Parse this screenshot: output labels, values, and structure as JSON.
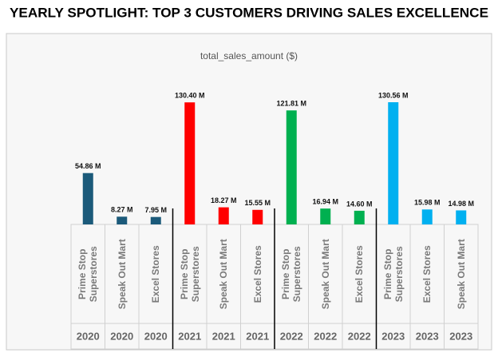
{
  "chart_data": {
    "type": "bar",
    "title": "YEARLY SPOTLIGHT: TOP 3 CUSTOMERS DRIVING SALES EXCELLENCE",
    "subtitle": "total_sales_amount ($)",
    "categories": [
      "Prime Stop Superstores",
      "Speak Out Mart",
      "Excel Stores",
      "Prime Stop Superstores",
      "Speak Out Mart",
      "Excel Stores",
      "Prime Stop Superstores",
      "Speak Out Mart",
      "Excel Stores",
      "Prime Stop Superstores",
      "Excel Stores",
      "Speak Out Mart"
    ],
    "groups": [
      "2020",
      "2020",
      "2020",
      "2021",
      "2021",
      "2021",
      "2022",
      "2022",
      "2022",
      "2023",
      "2023",
      "2023"
    ],
    "values": [
      54.86,
      8.27,
      7.95,
      130.4,
      18.27,
      15.55,
      121.81,
      16.94,
      14.6,
      130.56,
      15.98,
      14.98
    ],
    "value_labels": [
      "54.86 M",
      "8.27 M",
      "7.95 M",
      "130.40 M",
      "18.27 M",
      "15.55 M",
      "121.81 M",
      "16.94 M",
      "14.60 M",
      "130.56 M",
      "15.98 M",
      "14.98 M"
    ],
    "colors": [
      "#1b5a7a",
      "#1b5a7a",
      "#1b5a7a",
      "#ff0000",
      "#ff0000",
      "#ff0000",
      "#00b050",
      "#00b050",
      "#00b050",
      "#00b0f0",
      "#00b0f0",
      "#00b0f0"
    ]
  }
}
